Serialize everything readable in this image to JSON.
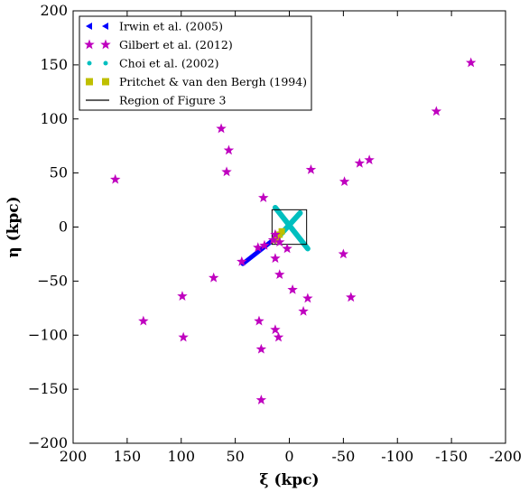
{
  "chart_data": {
    "type": "scatter",
    "xlabel": "ξ (kpc)",
    "ylabel": "η (kpc)",
    "xlim": [
      200,
      -200
    ],
    "ylim": [
      -200,
      200
    ],
    "x_ticks": [
      200,
      150,
      100,
      50,
      0,
      -50,
      -100,
      -150,
      -200
    ],
    "y_ticks": [
      -200,
      -150,
      -100,
      -50,
      0,
      50,
      100,
      150,
      200
    ],
    "x_tick_labels": [
      "200",
      "150",
      "100",
      "50",
      "0",
      "-50",
      "-100",
      "-150",
      "-200"
    ],
    "y_tick_labels": [
      "−200",
      "−150",
      "−100",
      "−50",
      "0",
      "50",
      "100",
      "150",
      "200"
    ],
    "grid": false,
    "legend_position": "top-left",
    "series": [
      {
        "name": "Irwin et al. (2005)",
        "marker": "triangle-left",
        "color": "#0000ff",
        "line_from": [
          43,
          -34
        ],
        "line_to": [
          6,
          -5
        ]
      },
      {
        "name": "Gilbert et al. (2012)",
        "marker": "star",
        "color": "#bf00bf",
        "points": [
          [
            -168,
            152
          ],
          [
            -136,
            107
          ],
          [
            161,
            44
          ],
          [
            63,
            91
          ],
          [
            56,
            71
          ],
          [
            58,
            51
          ],
          [
            -20,
            53
          ],
          [
            -65,
            59
          ],
          [
            -74,
            62
          ],
          [
            -51,
            42
          ],
          [
            24,
            27
          ],
          [
            44,
            -32
          ],
          [
            29,
            -19
          ],
          [
            23,
            -17
          ],
          [
            13,
            -29
          ],
          [
            9,
            -44
          ],
          [
            2,
            -20
          ],
          [
            -3,
            -58
          ],
          [
            -17,
            -66
          ],
          [
            -13,
            -78
          ],
          [
            -50,
            -25
          ],
          [
            -57,
            -65
          ],
          [
            70,
            -47
          ],
          [
            99,
            -64
          ],
          [
            135,
            -87
          ],
          [
            98,
            -102
          ],
          [
            28,
            -87
          ],
          [
            13,
            -95
          ],
          [
            10,
            -102
          ],
          [
            26,
            -113
          ],
          [
            26,
            -160
          ],
          [
            15,
            -12
          ],
          [
            9,
            -14
          ],
          [
            13,
            -7
          ]
        ]
      },
      {
        "name": "Choi et al. (2002)",
        "marker": "circle",
        "color": "#00bfbf",
        "line_a_from": [
          13,
          18
        ],
        "line_a_to": [
          -17,
          -20
        ],
        "line_b_from": [
          -10,
          13
        ],
        "line_b_to": [
          10,
          -9
        ]
      },
      {
        "name": "Pritchet & van den Bergh (1994)",
        "marker": "square",
        "color": "#bfbf00",
        "points": [
          [
            7,
            -4
          ],
          [
            9,
            -7
          ],
          [
            11,
            -9
          ],
          [
            13,
            -12
          ]
        ]
      },
      {
        "name": "Region of Figure 3",
        "marker": "line",
        "color": "#000000",
        "rect_x": [
          -16,
          16
        ],
        "rect_y": [
          -16,
          16
        ]
      }
    ]
  }
}
